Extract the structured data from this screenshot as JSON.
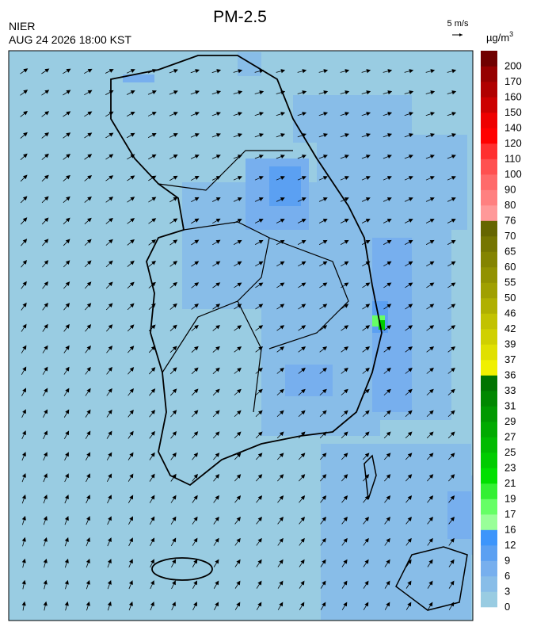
{
  "header": {
    "title": "PM-2.5",
    "source": "NIER",
    "datetime": "AUG 24 2026 18:00 KST",
    "wind_scale": "5 m/s"
  },
  "legend": {
    "unit": {
      "base": "µg/m",
      "superscript": "3"
    },
    "labels": [
      0,
      3,
      6,
      9,
      12,
      16,
      17,
      19,
      21,
      23,
      25,
      27,
      29,
      31,
      33,
      36,
      37,
      39,
      42,
      46,
      50,
      55,
      60,
      65,
      70,
      76,
      80,
      90,
      100,
      110,
      120,
      140,
      150,
      160,
      170,
      200
    ],
    "colors": [
      "#99cce2",
      "#88bde8",
      "#77afee",
      "#5ba0f2",
      "#3d95fb",
      "#99ff99",
      "#66ff66",
      "#33f033",
      "#00e000",
      "#00cc00",
      "#00bb00",
      "#00aa00",
      "#009900",
      "#008800",
      "#007500",
      "#f0f000",
      "#e0e000",
      "#d0d000",
      "#c2c200",
      "#b0b000",
      "#a0a000",
      "#929200",
      "#848400",
      "#767600",
      "#666600",
      "#ff9999",
      "#ff8080",
      "#ff6a6a",
      "#ff5050",
      "#ff3030",
      "#ff0000",
      "#ee0000",
      "#cc0000",
      "#b00000",
      "#960000",
      "#700000"
    ]
  }
}
